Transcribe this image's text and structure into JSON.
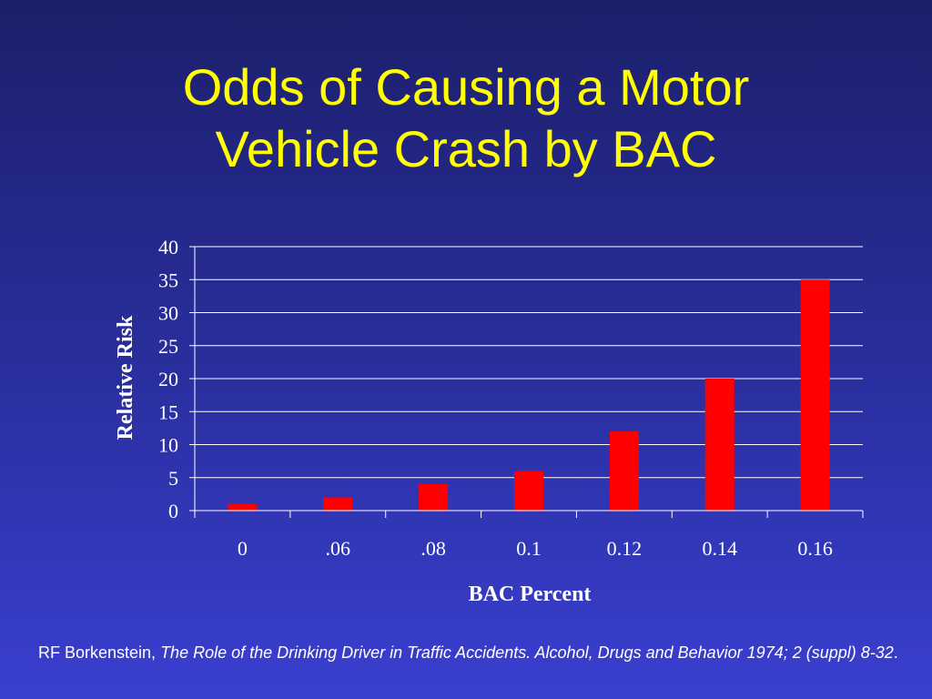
{
  "title_lines": [
    "Odds of Causing a Motor",
    "Vehicle Crash by BAC"
  ],
  "chart_data": {
    "type": "bar",
    "title": "Odds of Causing a Motor Vehicle Crash by BAC",
    "categories": [
      "0",
      ".06",
      ".08",
      "0.1",
      "0.12",
      "0.14",
      "0.16"
    ],
    "values": [
      1,
      2,
      4,
      6,
      12,
      20,
      35
    ],
    "xlabel": "BAC Percent",
    "ylabel": "Relative Risk",
    "ylim": [
      0,
      40
    ],
    "yticks": [
      "0",
      "5",
      "10",
      "15",
      "20",
      "25",
      "30",
      "35",
      "40"
    ],
    "grid": true,
    "legend": "none",
    "bar_color": "#ff0000"
  },
  "citation": {
    "author": "RF Borkenstein, ",
    "work": "The Role of the Drinking Driver in Traffic Accidents. Alcohol, Drugs and Behavior 1974; 2 (suppl) 8-32",
    "end": "."
  },
  "colors": {
    "title": "#ffff00",
    "text": "#ffffff",
    "grid": "#ffffff",
    "bar": "#ff0000"
  }
}
